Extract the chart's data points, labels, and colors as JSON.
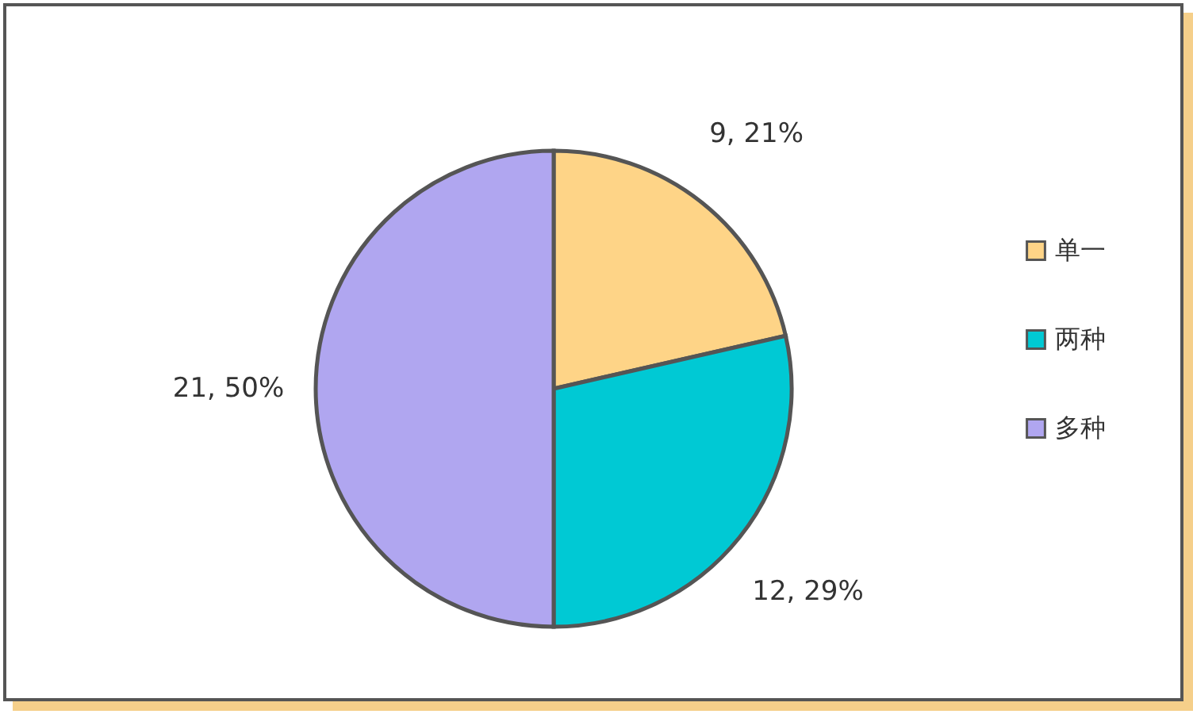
{
  "chart_data": {
    "type": "pie",
    "categories": [
      "单一",
      "两种",
      "多种"
    ],
    "values": [
      9,
      12,
      21
    ],
    "colors": [
      "#fed487",
      "#00c9d4",
      "#b0a6f0"
    ],
    "value_labels": [
      "9, 21%",
      "12, 29%",
      "21, 50%"
    ],
    "legend": "right"
  }
}
